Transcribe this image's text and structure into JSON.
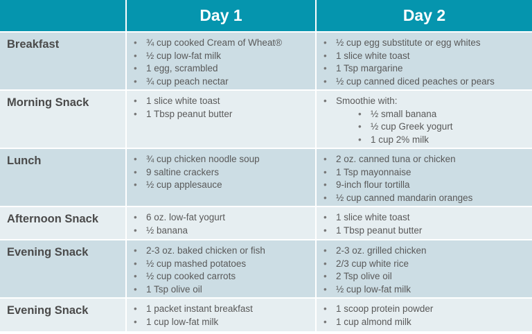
{
  "header": {
    "blank": "",
    "day1": "Day 1",
    "day2": "Day 2"
  },
  "rows": [
    {
      "meal": "Breakfast",
      "day1": [
        "¾ cup cooked Cream of Wheat®",
        "½ cup low-fat milk",
        "1 egg, scrambled",
        "¾ cup peach nectar"
      ],
      "day2": [
        "½ cup egg substitute or egg whites",
        "1 slice white toast",
        "1 Tsp margarine",
        "½ cup canned diced peaches or pears"
      ]
    },
    {
      "meal": "Morning Snack",
      "day1": [
        "1 slice white toast",
        "1 Tbsp peanut butter"
      ],
      "day2": [
        "Smoothie with:",
        {
          "sub": "½ small banana"
        },
        {
          "sub": "½ cup Greek yogurt"
        },
        {
          "sub": "1 cup 2% milk"
        }
      ]
    },
    {
      "meal": "Lunch",
      "day1": [
        "¾ cup chicken noodle soup",
        "9 saltine crackers",
        "½ cup applesauce"
      ],
      "day2": [
        "2 oz. canned tuna or chicken",
        "1 Tsp mayonnaise",
        "9-inch flour tortilla",
        "½ cup canned mandarin oranges"
      ]
    },
    {
      "meal": "Afternoon Snack",
      "day1": [
        "6 oz. low-fat yogurt",
        "½ banana"
      ],
      "day2": [
        "1 slice white toast",
        "1 Tbsp peanut butter"
      ]
    },
    {
      "meal": "Evening Snack",
      "day1": [
        "2-3 oz. baked chicken or fish",
        "½ cup mashed potatoes",
        "½ cup cooked carrots",
        "1 Tsp olive oil"
      ],
      "day2": [
        "2-3 oz. grilled chicken",
        "2/3 cup white rice",
        "2 Tsp olive oil",
        "½ cup low-fat milk"
      ]
    },
    {
      "meal": "Evening Snack",
      "day1": [
        "1 packet instant breakfast",
        "1 cup low-fat milk"
      ],
      "day2": [
        "1 scoop protein powder",
        "1 cup almond milk"
      ]
    }
  ],
  "colors": {
    "header": "#0595AE",
    "row_dark": "#CCDDE4",
    "row_light": "#E6EEF1"
  }
}
